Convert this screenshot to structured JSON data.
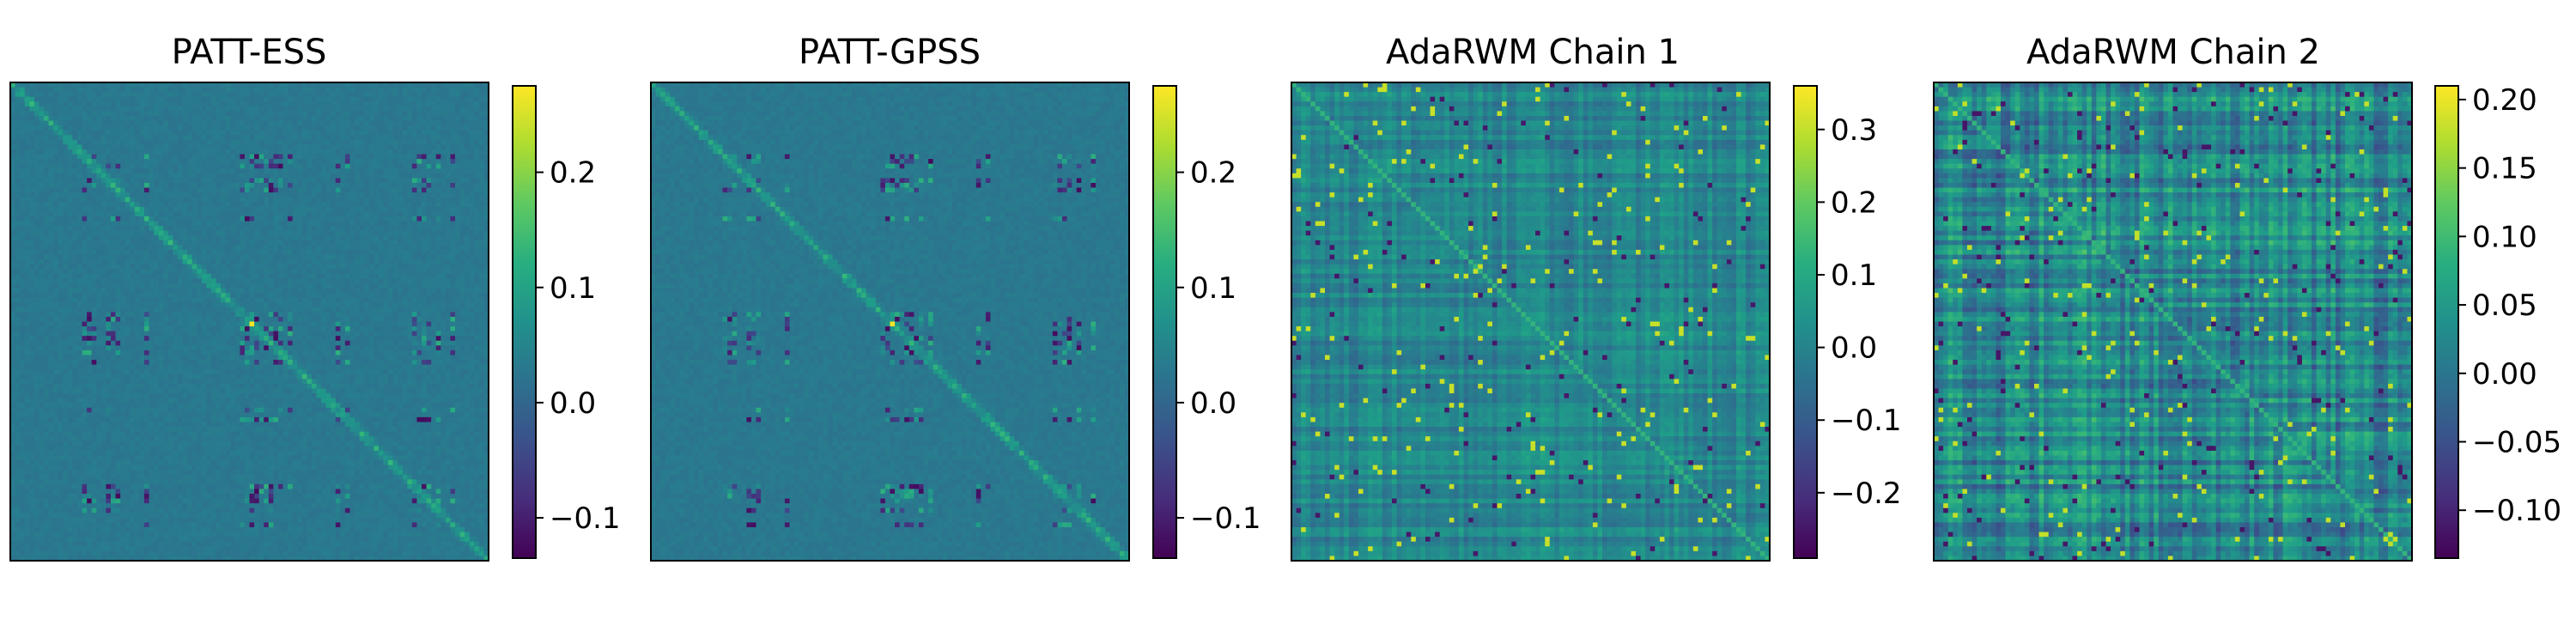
{
  "chart_data": [
    {
      "type": "heatmap",
      "title": "PATT-ESS",
      "colormap": "viridis",
      "matrix_size": 100,
      "pattern": "sparse",
      "colorbar": {
        "range": [
          -0.135,
          0.275
        ],
        "ticks": [
          -0.1,
          0.0,
          0.1,
          0.2
        ],
        "tick_labels": [
          "−0.1",
          "0.0",
          "0.1",
          "0.2"
        ]
      }
    },
    {
      "type": "heatmap",
      "title": "PATT-GPSS",
      "colormap": "viridis",
      "matrix_size": 100,
      "pattern": "sparse",
      "colorbar": {
        "range": [
          -0.135,
          0.275
        ],
        "ticks": [
          -0.1,
          0.0,
          0.1,
          0.2
        ],
        "tick_labels": [
          "−0.1",
          "0.0",
          "0.1",
          "0.2"
        ]
      }
    },
    {
      "type": "heatmap",
      "title": "AdaRWM Chain 1",
      "colormap": "viridis",
      "matrix_size": 100,
      "pattern": "dense",
      "colorbar": {
        "range": [
          -0.29,
          0.36
        ],
        "ticks": [
          -0.2,
          -0.1,
          0.0,
          0.1,
          0.2,
          0.3
        ],
        "tick_labels": [
          "−0.2",
          "−0.1",
          "0.0",
          "0.1",
          "0.2",
          "0.3"
        ]
      }
    },
    {
      "type": "heatmap",
      "title": "AdaRWM Chain 2",
      "colormap": "viridis",
      "matrix_size": 100,
      "pattern": "dense",
      "colorbar": {
        "range": [
          -0.135,
          0.21
        ],
        "ticks": [
          -0.1,
          -0.05,
          0.0,
          0.05,
          0.1,
          0.15,
          0.2
        ],
        "tick_labels": [
          "−0.10",
          "−0.05",
          "0.00",
          "0.05",
          "0.10",
          "0.15",
          "0.20"
        ]
      }
    }
  ]
}
